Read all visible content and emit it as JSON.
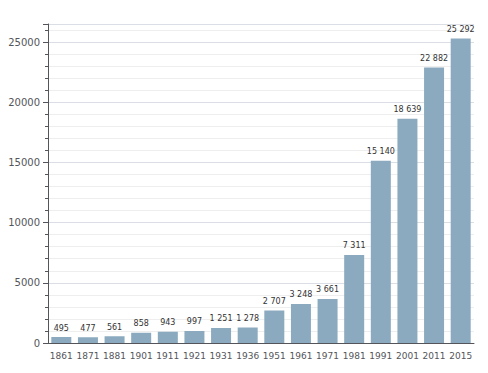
{
  "chart_data": {
    "type": "bar",
    "categories": [
      "1861",
      "1871",
      "1881",
      "1901",
      "1911",
      "1921",
      "1931",
      "1936",
      "1951",
      "1961",
      "1971",
      "1981",
      "1991",
      "2001",
      "2011",
      "2015"
    ],
    "values": [
      495,
      477,
      561,
      858,
      943,
      997,
      1251,
      1278,
      2707,
      3248,
      3661,
      7311,
      15140,
      18639,
      22882,
      25292
    ],
    "value_labels": [
      "495",
      "477",
      "561",
      "858",
      "943",
      "997",
      "1 251",
      "1 278",
      "2 707",
      "3 248",
      "3 661",
      "7 311",
      "15 140",
      "18 639",
      "22 882",
      "25 292"
    ],
    "data_labels": true,
    "color": "#8BAABF",
    "ylim": [
      0,
      26500
    ],
    "yticks": [
      0,
      5000,
      10000,
      15000,
      20000,
      25000
    ],
    "grid": true
  }
}
